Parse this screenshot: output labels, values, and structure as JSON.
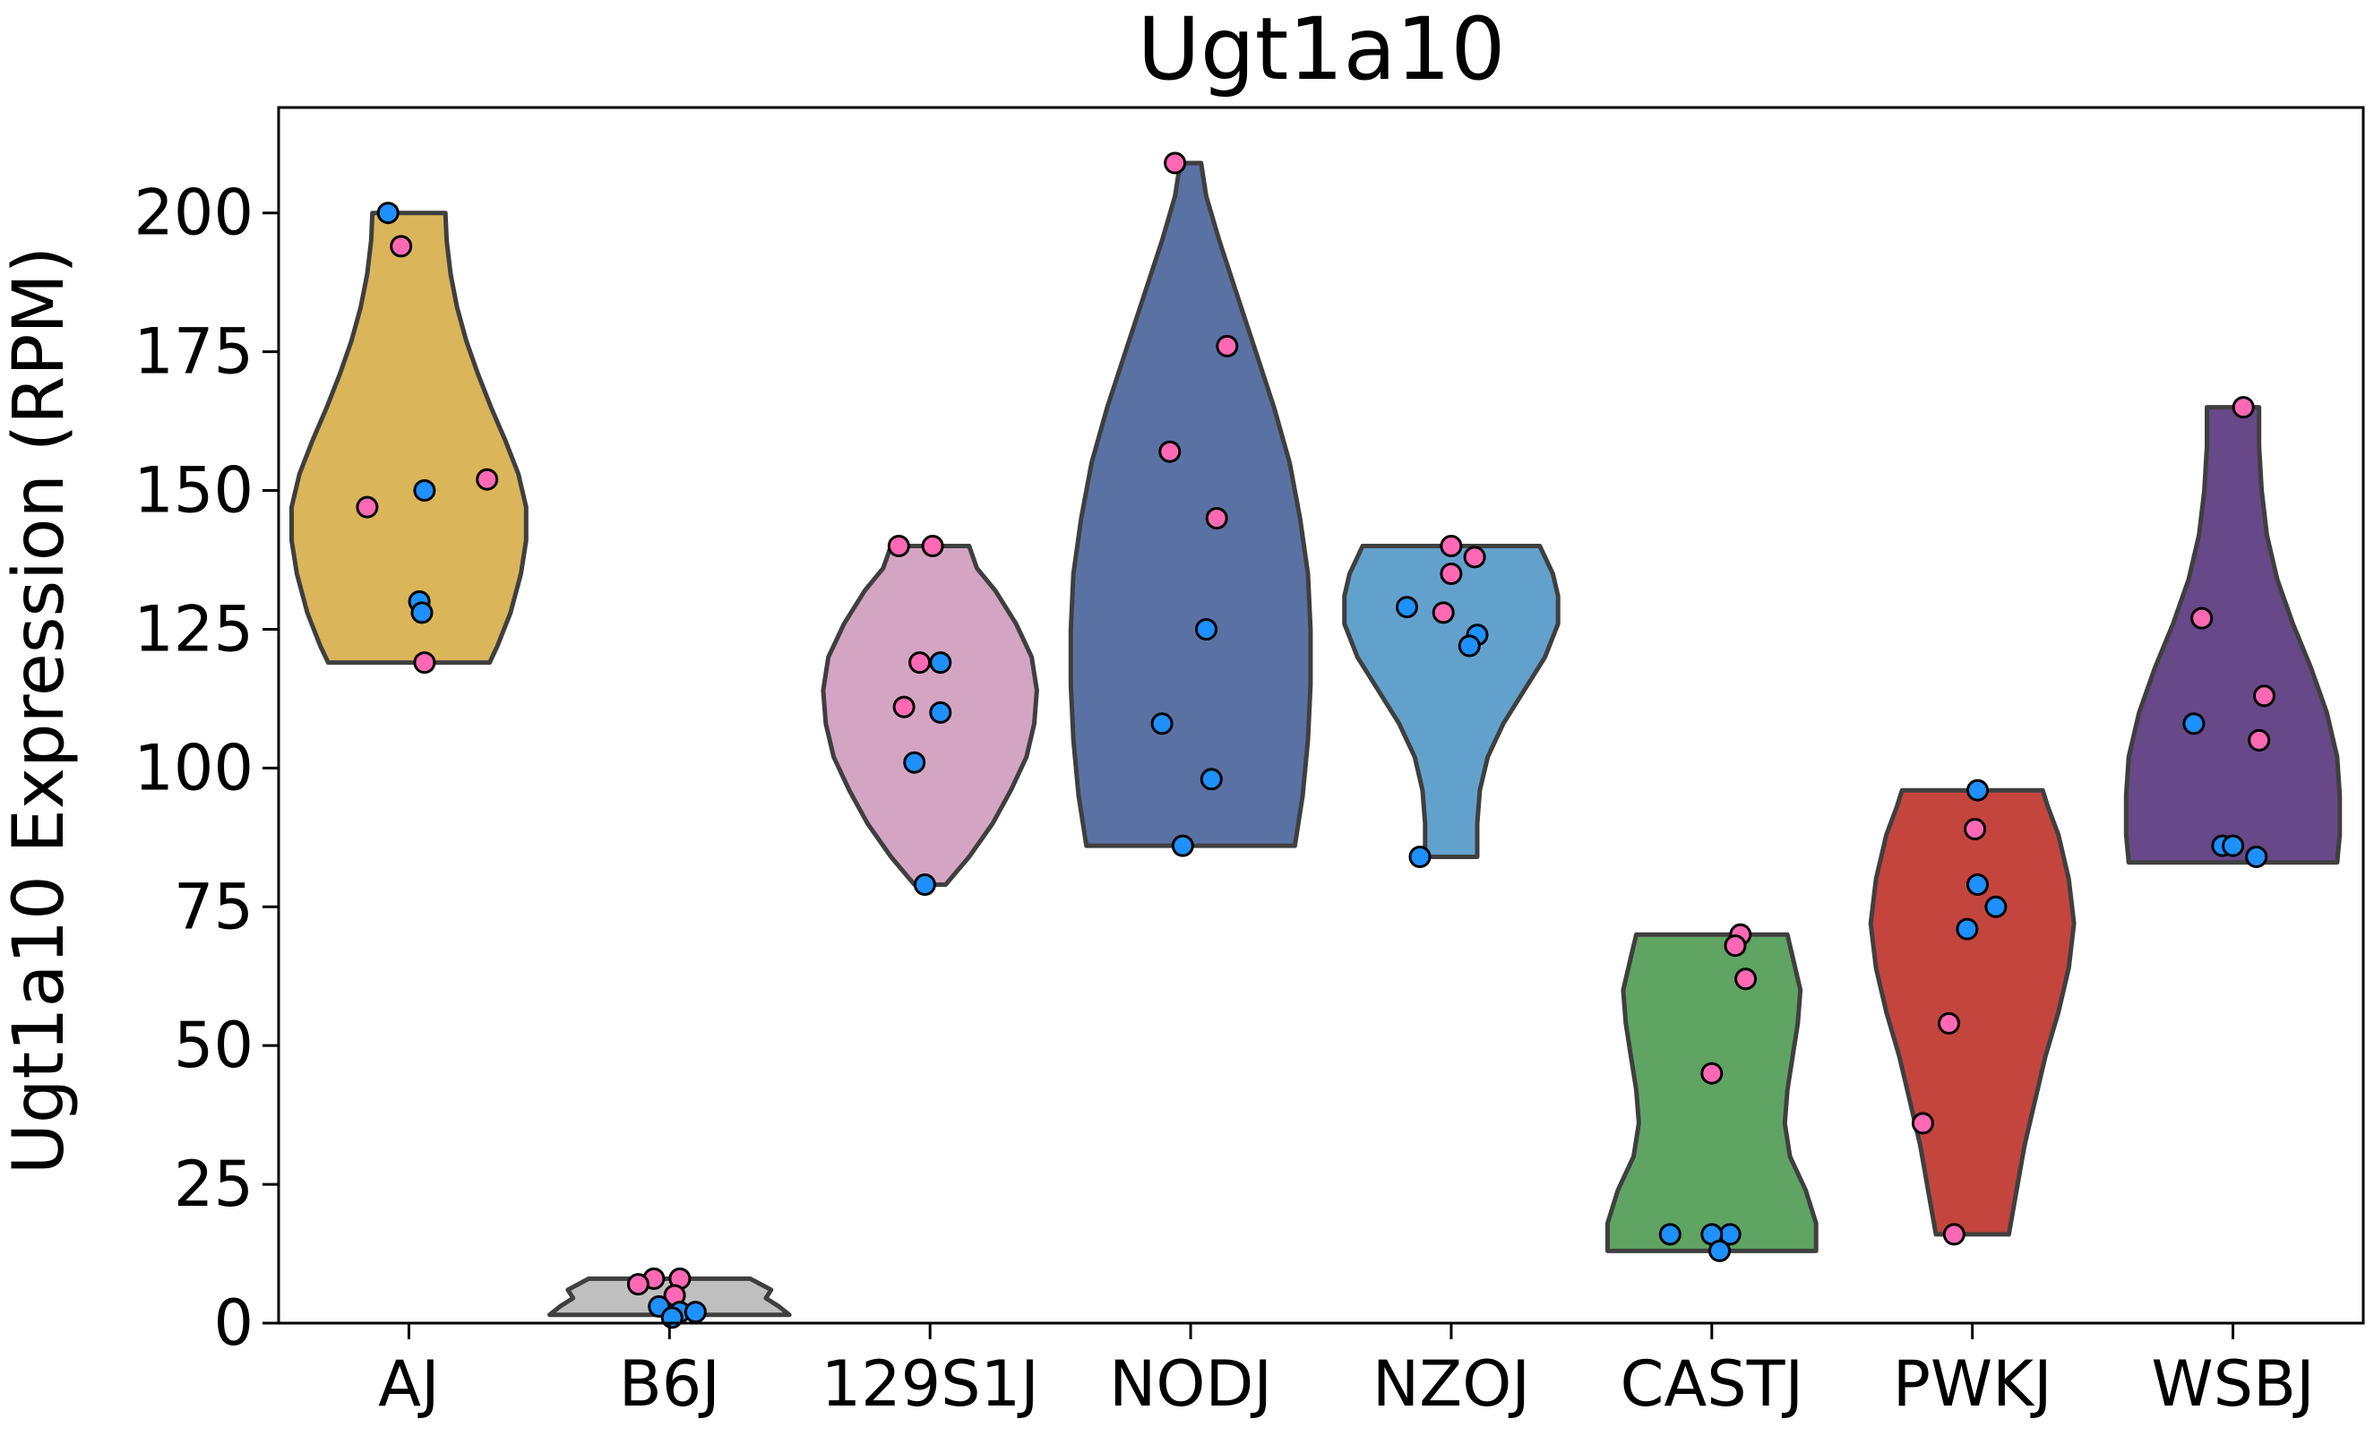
{
  "chart_data": {
    "type": "violin",
    "title": "Ugt1a10",
    "xlabel": "",
    "ylabel": "Ugt1a10 Expression (RPM)",
    "ylim": [
      0,
      219
    ],
    "yticks": [
      0,
      25,
      50,
      75,
      100,
      125,
      150,
      175,
      200
    ],
    "grid": false,
    "legend": "none",
    "point_colors": {
      "pink": "#ff69b4",
      "blue": "#1e90ff"
    },
    "groups": [
      {
        "name": "AJ",
        "color": "#dbb55a",
        "widths": [
          [
            119,
            0.62
          ],
          [
            122,
            0.68
          ],
          [
            128,
            0.78
          ],
          [
            135,
            0.86
          ],
          [
            141,
            0.9
          ],
          [
            147,
            0.9
          ],
          [
            153,
            0.84
          ],
          [
            159,
            0.74
          ],
          [
            165,
            0.63
          ],
          [
            171,
            0.53
          ],
          [
            177,
            0.44
          ],
          [
            183,
            0.37
          ],
          [
            189,
            0.32
          ],
          [
            195,
            0.29
          ],
          [
            200,
            0.28
          ]
        ],
        "points": [
          [
            -0.08,
            200,
            "blue"
          ],
          [
            -0.03,
            194,
            "pink"
          ],
          [
            0.3,
            152,
            "pink"
          ],
          [
            0.06,
            150,
            "blue"
          ],
          [
            -0.16,
            147,
            "pink"
          ],
          [
            0.04,
            130,
            "blue"
          ],
          [
            0.05,
            128,
            "blue"
          ],
          [
            0.06,
            119,
            "pink"
          ]
        ]
      },
      {
        "name": "B6J",
        "color": "#bfbfbf",
        "widths": [
          [
            1.5,
            0.92
          ],
          [
            3,
            0.84
          ],
          [
            4.5,
            0.74
          ],
          [
            6,
            0.78
          ],
          [
            7.5,
            0.66
          ],
          [
            8,
            0.62
          ]
        ],
        "points": [
          [
            -0.06,
            8,
            "pink"
          ],
          [
            0.04,
            8,
            "pink"
          ],
          [
            -0.12,
            7,
            "pink"
          ],
          [
            0.02,
            5,
            "pink"
          ],
          [
            -0.04,
            3,
            "blue"
          ],
          [
            0.04,
            2,
            "blue"
          ],
          [
            0.1,
            2,
            "blue"
          ],
          [
            0.01,
            1,
            "blue"
          ]
        ]
      },
      {
        "name": "129S1J",
        "color": "#d4a5c2",
        "widths": [
          [
            79,
            0.12
          ],
          [
            84,
            0.3
          ],
          [
            90,
            0.48
          ],
          [
            96,
            0.62
          ],
          [
            102,
            0.74
          ],
          [
            108,
            0.8
          ],
          [
            114,
            0.82
          ],
          [
            120,
            0.78
          ],
          [
            126,
            0.66
          ],
          [
            132,
            0.5
          ],
          [
            136,
            0.36
          ],
          [
            140,
            0.3
          ]
        ],
        "points": [
          [
            -0.12,
            140,
            "pink"
          ],
          [
            0.01,
            140,
            "pink"
          ],
          [
            -0.04,
            119,
            "pink"
          ],
          [
            0.04,
            119,
            "blue"
          ],
          [
            -0.1,
            111,
            "pink"
          ],
          [
            0.04,
            110,
            "blue"
          ],
          [
            -0.06,
            101,
            "blue"
          ],
          [
            -0.02,
            79,
            "blue"
          ]
        ]
      },
      {
        "name": "NODJ",
        "color": "#5a72a3",
        "widths": [
          [
            86,
            0.8
          ],
          [
            95,
            0.86
          ],
          [
            105,
            0.9
          ],
          [
            115,
            0.92
          ],
          [
            125,
            0.92
          ],
          [
            135,
            0.9
          ],
          [
            145,
            0.84
          ],
          [
            155,
            0.76
          ],
          [
            165,
            0.64
          ],
          [
            175,
            0.5
          ],
          [
            185,
            0.36
          ],
          [
            195,
            0.22
          ],
          [
            203,
            0.12
          ],
          [
            209,
            0.08
          ]
        ],
        "points": [
          [
            -0.06,
            209,
            "pink"
          ],
          [
            0.14,
            176,
            "pink"
          ],
          [
            -0.08,
            157,
            "pink"
          ],
          [
            0.1,
            145,
            "pink"
          ],
          [
            0.06,
            125,
            "blue"
          ],
          [
            -0.11,
            108,
            "blue"
          ],
          [
            0.08,
            98,
            "blue"
          ],
          [
            -0.03,
            86,
            "blue"
          ]
        ]
      },
      {
        "name": "NZOJ",
        "color": "#63a1cd",
        "widths": [
          [
            84,
            0.2
          ],
          [
            90,
            0.2
          ],
          [
            96,
            0.22
          ],
          [
            102,
            0.28
          ],
          [
            108,
            0.4
          ],
          [
            114,
            0.56
          ],
          [
            120,
            0.72
          ],
          [
            126,
            0.82
          ],
          [
            131,
            0.82
          ],
          [
            135,
            0.78
          ],
          [
            138,
            0.72
          ],
          [
            140,
            0.68
          ]
        ],
        "points": [
          [
            0.0,
            140,
            "pink"
          ],
          [
            0.09,
            138,
            "pink"
          ],
          [
            0.0,
            135,
            "pink"
          ],
          [
            -0.17,
            129,
            "blue"
          ],
          [
            -0.03,
            128,
            "pink"
          ],
          [
            0.1,
            124,
            "blue"
          ],
          [
            0.07,
            122,
            "blue"
          ],
          [
            -0.12,
            84,
            "blue"
          ]
        ]
      },
      {
        "name": "CASTJ",
        "color": "#5fa463",
        "widths": [
          [
            13,
            0.8
          ],
          [
            18,
            0.8
          ],
          [
            24,
            0.72
          ],
          [
            30,
            0.6
          ],
          [
            36,
            0.56
          ],
          [
            42,
            0.58
          ],
          [
            48,
            0.62
          ],
          [
            54,
            0.66
          ],
          [
            60,
            0.68
          ],
          [
            66,
            0.62
          ],
          [
            70,
            0.58
          ]
        ],
        "points": [
          [
            0.11,
            70,
            "pink"
          ],
          [
            0.09,
            68,
            "pink"
          ],
          [
            0.13,
            62,
            "pink"
          ],
          [
            0.0,
            45,
            "pink"
          ],
          [
            0.07,
            16,
            "blue"
          ],
          [
            0.0,
            16,
            "blue"
          ],
          [
            -0.16,
            16,
            "blue"
          ],
          [
            0.03,
            13,
            "blue"
          ]
        ]
      },
      {
        "name": "PWKJ",
        "color": "#c4453e",
        "widths": [
          [
            16,
            0.28
          ],
          [
            24,
            0.34
          ],
          [
            32,
            0.4
          ],
          [
            40,
            0.48
          ],
          [
            48,
            0.56
          ],
          [
            56,
            0.66
          ],
          [
            64,
            0.74
          ],
          [
            72,
            0.78
          ],
          [
            80,
            0.74
          ],
          [
            88,
            0.66
          ],
          [
            93,
            0.58
          ],
          [
            96,
            0.54
          ]
        ],
        "points": [
          [
            0.02,
            96,
            "blue"
          ],
          [
            0.01,
            89,
            "pink"
          ],
          [
            0.02,
            79,
            "blue"
          ],
          [
            0.09,
            75,
            "blue"
          ],
          [
            -0.02,
            71,
            "blue"
          ],
          [
            -0.09,
            54,
            "pink"
          ],
          [
            -0.19,
            36,
            "pink"
          ],
          [
            -0.07,
            16,
            "pink"
          ]
        ]
      },
      {
        "name": "WSBJ",
        "color": "#674888",
        "widths": [
          [
            83,
            0.8
          ],
          [
            88,
            0.82
          ],
          [
            95,
            0.82
          ],
          [
            102,
            0.8
          ],
          [
            110,
            0.72
          ],
          [
            118,
            0.6
          ],
          [
            126,
            0.46
          ],
          [
            134,
            0.34
          ],
          [
            142,
            0.26
          ],
          [
            150,
            0.22
          ],
          [
            158,
            0.2
          ],
          [
            165,
            0.2
          ]
        ],
        "points": [
          [
            0.04,
            165,
            "pink"
          ],
          [
            -0.12,
            127,
            "pink"
          ],
          [
            0.12,
            113,
            "pink"
          ],
          [
            -0.15,
            108,
            "blue"
          ],
          [
            0.1,
            105,
            "pink"
          ],
          [
            -0.04,
            86,
            "blue"
          ],
          [
            0.0,
            86,
            "blue"
          ],
          [
            0.09,
            84,
            "blue"
          ]
        ]
      }
    ]
  }
}
